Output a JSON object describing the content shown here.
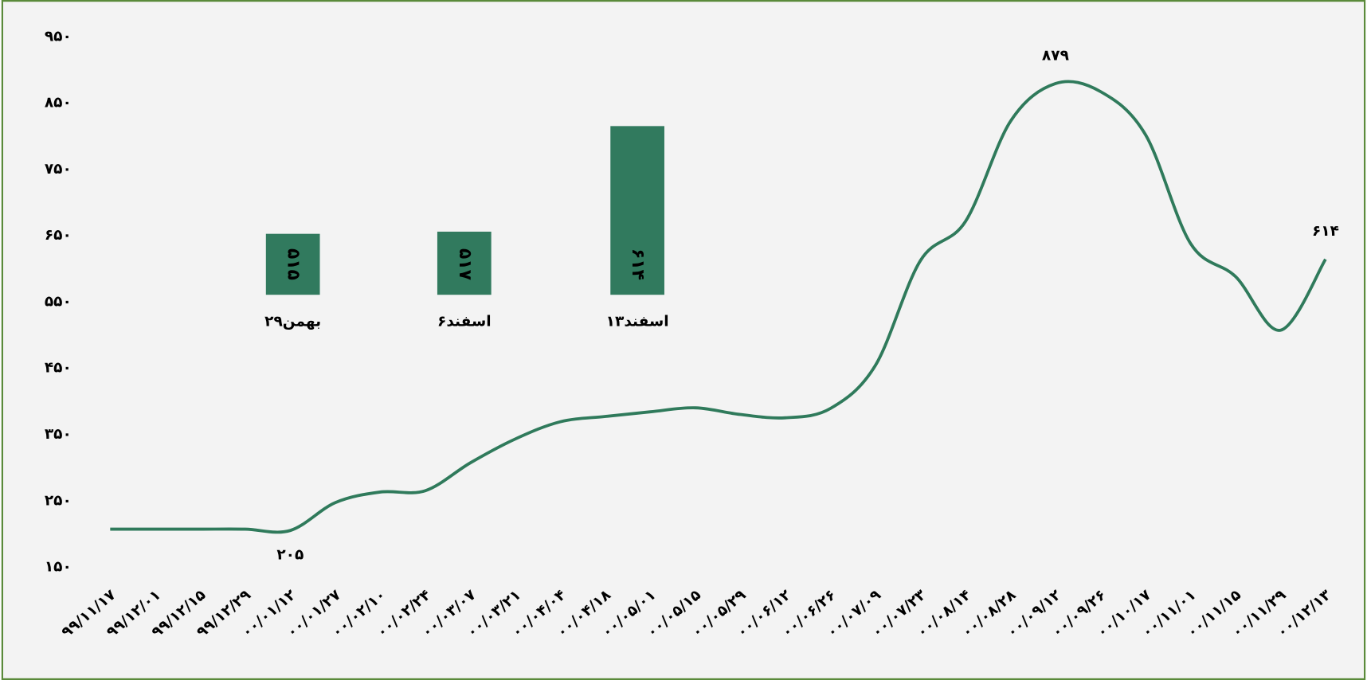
{
  "chart_data": [
    {
      "type": "line",
      "categories": [
        "۹۹/۱۱/۱۷",
        "۹۹/۱۲/۰۱",
        "۹۹/۱۲/۱۵",
        "۹۹/۱۲/۲۹",
        "۰۰/۰۱/۱۲",
        "۰۰/۰۱/۲۷",
        "۰۰/۰۲/۱۰",
        "۰۰/۰۲/۲۴",
        "۰۰/۰۳/۰۷",
        "۰۰/۰۳/۲۱",
        "۰۰/۰۴/۰۴",
        "۰۰/۰۴/۱۸",
        "۰۰/۰۵/۰۱",
        "۰۰/۰۵/۱۵",
        "۰۰/۰۵/۲۹",
        "۰۰/۰۶/۱۲",
        "۰۰/۰۶/۲۶",
        "۰۰/۰۷/۰۹",
        "۰۰/۰۷/۲۳",
        "۰۰/۰۸/۱۴",
        "۰۰/۰۸/۲۸",
        "۰۰/۰۹/۱۲",
        "۰۰/۰۹/۲۶",
        "۰۰/۱۰/۱۷",
        "۰۰/۱۱/۰۱",
        "۰۰/۱۱/۱۵",
        "۰۰/۱۱/۲۹",
        "۰۰/۱۲/۱۳"
      ],
      "values": [
        207,
        207,
        207,
        207,
        205,
        247,
        263,
        265,
        307,
        343,
        369,
        377,
        384,
        390,
        380,
        375,
        389,
        454,
        612,
        671,
        822,
        879,
        867,
        802,
        638,
        588,
        507,
        614
      ],
      "value_labels": [
        null,
        null,
        null,
        null,
        "۲۰۵",
        null,
        null,
        null,
        null,
        null,
        null,
        null,
        null,
        null,
        null,
        null,
        null,
        null,
        null,
        null,
        null,
        "۸۷۹",
        null,
        null,
        null,
        null,
        null,
        "۶۱۴"
      ],
      "color": "#2f7a5b",
      "ylim": [
        150,
        950
      ],
      "yticks": [
        {
          "value": 150,
          "label": "۱۵۰"
        },
        {
          "value": 250,
          "label": "۲۵۰"
        },
        {
          "value": 350,
          "label": "۳۵۰"
        },
        {
          "value": 450,
          "label": "۴۵۰"
        },
        {
          "value": 550,
          "label": "۵۵۰"
        },
        {
          "value": 650,
          "label": "۶۵۰"
        },
        {
          "value": 750,
          "label": "۷۵۰"
        },
        {
          "value": 850,
          "label": "۸۵۰"
        },
        {
          "value": 950,
          "label": "۹۵۰"
        }
      ]
    },
    {
      "type": "bar",
      "categories": [
        "۲۹بهمن",
        "۶اسفند",
        "۱۳اسفند"
      ],
      "values": [
        515,
        517,
        614
      ],
      "value_labels": [
        "۵۱۵",
        "۵۱۷",
        "۶۱۴"
      ],
      "color": "#317a5e",
      "ylim": [
        459,
        614
      ]
    }
  ]
}
